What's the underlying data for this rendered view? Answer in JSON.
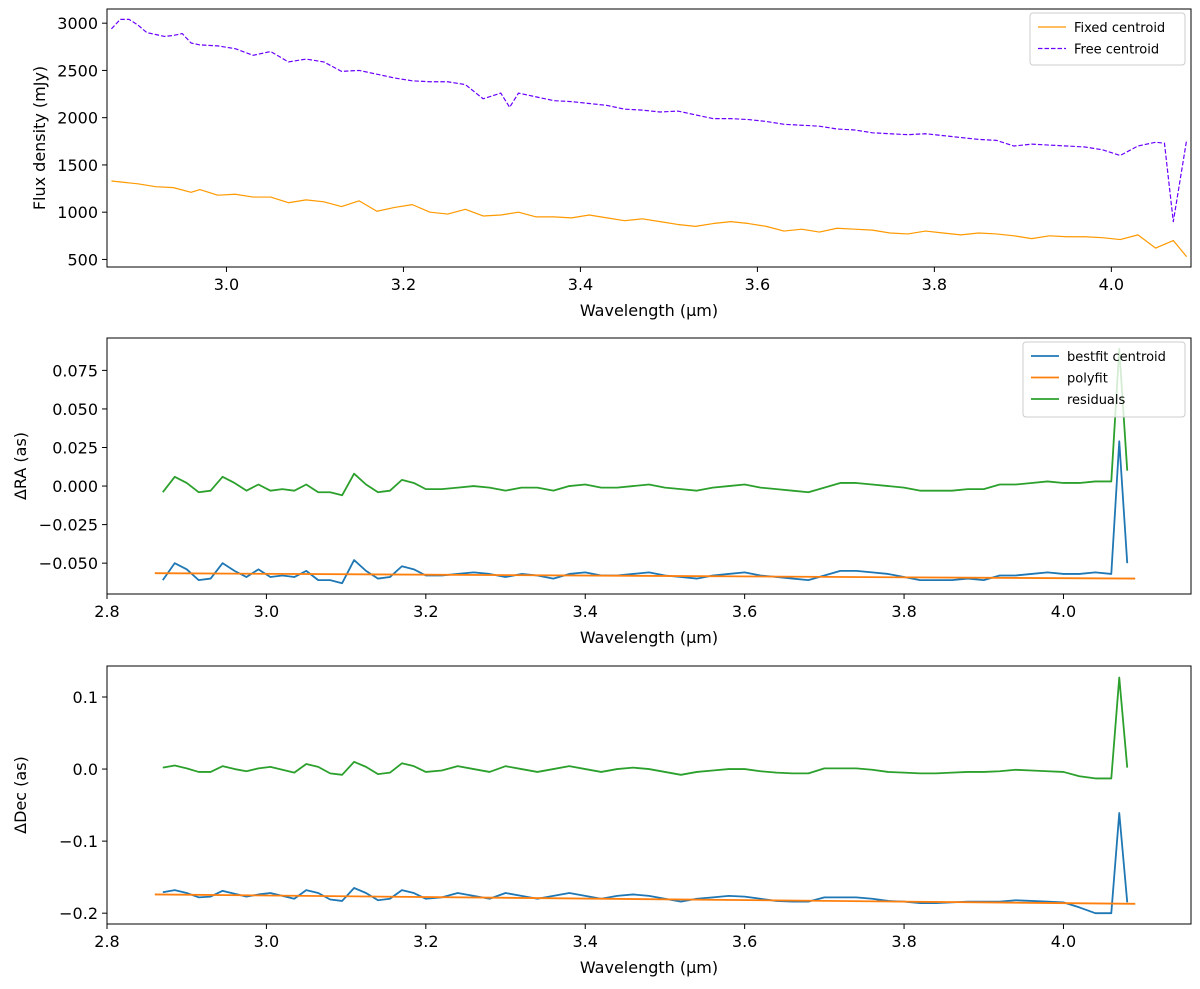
{
  "chart_data": [
    {
      "type": "line",
      "xlabel": "Wavelength (μm)",
      "ylabel": "Flux density (mJy)",
      "xlim": [
        2.865,
        4.09
      ],
      "ylim": [
        420,
        3150
      ],
      "xticks": [
        3.0,
        3.2,
        3.4,
        3.6,
        3.8,
        4.0
      ],
      "xtick_labels": [
        "3.0",
        "3.2",
        "3.4",
        "3.6",
        "3.8",
        "4.0"
      ],
      "yticks": [
        500,
        1000,
        1500,
        2000,
        2500,
        3000
      ],
      "ytick_labels": [
        "500",
        "1000",
        "1500",
        "2000",
        "2500",
        "3000"
      ],
      "grid": false,
      "legend": "top-right",
      "series": [
        {
          "name": "Fixed centroid",
          "color": "#ff9900",
          "dash": "solid",
          "x": [
            2.87,
            2.9,
            2.92,
            2.94,
            2.96,
            2.97,
            2.99,
            3.01,
            3.03,
            3.05,
            3.07,
            3.09,
            3.11,
            3.13,
            3.15,
            3.17,
            3.19,
            3.21,
            3.23,
            3.25,
            3.27,
            3.29,
            3.31,
            3.33,
            3.35,
            3.37,
            3.39,
            3.41,
            3.43,
            3.45,
            3.47,
            3.49,
            3.51,
            3.53,
            3.55,
            3.57,
            3.59,
            3.61,
            3.63,
            3.65,
            3.67,
            3.69,
            3.71,
            3.73,
            3.75,
            3.77,
            3.79,
            3.81,
            3.83,
            3.85,
            3.87,
            3.89,
            3.91,
            3.93,
            3.95,
            3.97,
            3.99,
            4.01,
            4.03,
            4.05,
            4.07,
            4.085
          ],
          "y": [
            1330,
            1300,
            1270,
            1260,
            1210,
            1240,
            1180,
            1190,
            1160,
            1160,
            1100,
            1130,
            1110,
            1060,
            1120,
            1010,
            1050,
            1080,
            1000,
            980,
            1030,
            960,
            970,
            1000,
            950,
            950,
            940,
            970,
            940,
            910,
            930,
            900,
            870,
            850,
            880,
            900,
            880,
            850,
            800,
            820,
            790,
            830,
            820,
            810,
            780,
            770,
            800,
            780,
            760,
            780,
            770,
            750,
            720,
            750,
            740,
            740,
            730,
            710,
            760,
            620,
            700,
            530
          ]
        },
        {
          "name": "Free centroid",
          "color": "#6a00ff",
          "dash": "dashed",
          "x": [
            2.87,
            2.88,
            2.89,
            2.9,
            2.91,
            2.92,
            2.93,
            2.94,
            2.95,
            2.96,
            2.97,
            2.99,
            3.01,
            3.03,
            3.05,
            3.07,
            3.09,
            3.11,
            3.13,
            3.15,
            3.17,
            3.19,
            3.21,
            3.23,
            3.25,
            3.27,
            3.29,
            3.31,
            3.32,
            3.33,
            3.35,
            3.37,
            3.39,
            3.41,
            3.43,
            3.45,
            3.47,
            3.49,
            3.51,
            3.53,
            3.55,
            3.57,
            3.59,
            3.61,
            3.63,
            3.65,
            3.67,
            3.69,
            3.71,
            3.73,
            3.75,
            3.77,
            3.79,
            3.81,
            3.83,
            3.85,
            3.87,
            3.89,
            3.91,
            3.93,
            3.95,
            3.97,
            3.99,
            4.01,
            4.03,
            4.05,
            4.06,
            4.07,
            4.085
          ],
          "y": [
            2940,
            3040,
            3040,
            2980,
            2900,
            2880,
            2860,
            2870,
            2890,
            2790,
            2770,
            2760,
            2730,
            2660,
            2700,
            2590,
            2620,
            2590,
            2490,
            2500,
            2460,
            2420,
            2390,
            2380,
            2380,
            2350,
            2200,
            2260,
            2110,
            2260,
            2220,
            2180,
            2170,
            2150,
            2130,
            2090,
            2080,
            2060,
            2070,
            2030,
            1990,
            1990,
            1980,
            1960,
            1930,
            1920,
            1910,
            1880,
            1870,
            1840,
            1830,
            1820,
            1830,
            1810,
            1790,
            1770,
            1760,
            1700,
            1720,
            1710,
            1700,
            1690,
            1660,
            1600,
            1700,
            1740,
            1730,
            900,
            1760
          ]
        }
      ]
    },
    {
      "type": "line",
      "xlabel": "Wavelength (μm)",
      "ylabel": "ΔRA (as)",
      "xlim": [
        2.8,
        4.16
      ],
      "ylim": [
        -0.07,
        0.096
      ],
      "xticks": [
        2.8,
        3.0,
        3.2,
        3.4,
        3.6,
        3.8,
        4.0
      ],
      "xtick_labels": [
        "2.8",
        "3.0",
        "3.2",
        "3.4",
        "3.6",
        "3.8",
        "4.0"
      ],
      "yticks": [
        -0.05,
        -0.025,
        0.0,
        0.025,
        0.05,
        0.075
      ],
      "ytick_labels": [
        "−0.050",
        "−0.025",
        "0.000",
        "0.025",
        "0.050",
        "0.075"
      ],
      "grid": false,
      "legend": "top-right",
      "series": [
        {
          "name": "bestfit centroid",
          "color": "#1f77b4",
          "dash": "solid",
          "x": [
            2.87,
            2.885,
            2.9,
            2.915,
            2.93,
            2.945,
            2.96,
            2.975,
            2.99,
            3.005,
            3.02,
            3.035,
            3.05,
            3.065,
            3.08,
            3.095,
            3.11,
            3.125,
            3.14,
            3.155,
            3.17,
            3.185,
            3.2,
            3.22,
            3.24,
            3.26,
            3.28,
            3.3,
            3.32,
            3.34,
            3.36,
            3.38,
            3.4,
            3.42,
            3.44,
            3.46,
            3.48,
            3.5,
            3.52,
            3.54,
            3.56,
            3.58,
            3.6,
            3.62,
            3.64,
            3.66,
            3.68,
            3.7,
            3.72,
            3.74,
            3.76,
            3.78,
            3.8,
            3.82,
            3.84,
            3.86,
            3.88,
            3.9,
            3.92,
            3.94,
            3.96,
            3.98,
            4.0,
            4.02,
            4.04,
            4.06,
            4.07,
            4.08
          ],
          "y": [
            -0.061,
            -0.05,
            -0.054,
            -0.061,
            -0.06,
            -0.05,
            -0.055,
            -0.059,
            -0.054,
            -0.059,
            -0.058,
            -0.059,
            -0.055,
            -0.061,
            -0.061,
            -0.063,
            -0.048,
            -0.055,
            -0.06,
            -0.059,
            -0.052,
            -0.054,
            -0.058,
            -0.058,
            -0.057,
            -0.056,
            -0.057,
            -0.059,
            -0.057,
            -0.058,
            -0.06,
            -0.057,
            -0.056,
            -0.058,
            -0.058,
            -0.057,
            -0.056,
            -0.058,
            -0.059,
            -0.06,
            -0.058,
            -0.057,
            -0.056,
            -0.058,
            -0.059,
            -0.06,
            -0.061,
            -0.058,
            -0.055,
            -0.055,
            -0.056,
            -0.057,
            -0.059,
            -0.061,
            -0.061,
            -0.061,
            -0.06,
            -0.061,
            -0.058,
            -0.058,
            -0.057,
            -0.056,
            -0.057,
            -0.057,
            -0.056,
            -0.057,
            0.029,
            -0.05
          ]
        },
        {
          "name": "polyfit",
          "color": "#ff7f0e",
          "dash": "solid",
          "x": [
            2.86,
            4.09
          ],
          "y": [
            -0.0565,
            -0.06
          ]
        },
        {
          "name": "residuals",
          "color": "#2ca02c",
          "dash": "solid",
          "x": [
            2.87,
            2.885,
            2.9,
            2.915,
            2.93,
            2.945,
            2.96,
            2.975,
            2.99,
            3.005,
            3.02,
            3.035,
            3.05,
            3.065,
            3.08,
            3.095,
            3.11,
            3.125,
            3.14,
            3.155,
            3.17,
            3.185,
            3.2,
            3.22,
            3.24,
            3.26,
            3.28,
            3.3,
            3.32,
            3.34,
            3.36,
            3.38,
            3.4,
            3.42,
            3.44,
            3.46,
            3.48,
            3.5,
            3.52,
            3.54,
            3.56,
            3.58,
            3.6,
            3.62,
            3.64,
            3.66,
            3.68,
            3.7,
            3.72,
            3.74,
            3.76,
            3.78,
            3.8,
            3.82,
            3.84,
            3.86,
            3.88,
            3.9,
            3.92,
            3.94,
            3.96,
            3.98,
            4.0,
            4.02,
            4.04,
            4.06,
            4.07,
            4.08
          ],
          "y": [
            -0.004,
            0.006,
            0.002,
            -0.004,
            -0.003,
            0.006,
            0.002,
            -0.003,
            0.001,
            -0.003,
            -0.002,
            -0.003,
            0.001,
            -0.004,
            -0.004,
            -0.006,
            0.008,
            0.001,
            -0.004,
            -0.003,
            0.004,
            0.002,
            -0.002,
            -0.002,
            -0.001,
            0.0,
            -0.001,
            -0.003,
            -0.001,
            -0.001,
            -0.003,
            0.0,
            0.001,
            -0.001,
            -0.001,
            0.0,
            0.001,
            -0.001,
            -0.002,
            -0.003,
            -0.001,
            0.0,
            0.001,
            -0.001,
            -0.002,
            -0.003,
            -0.004,
            -0.001,
            0.002,
            0.002,
            0.001,
            0.0,
            -0.001,
            -0.003,
            -0.003,
            -0.003,
            -0.002,
            -0.002,
            0.001,
            0.001,
            0.002,
            0.003,
            0.002,
            0.002,
            0.003,
            0.003,
            0.089,
            0.01
          ]
        }
      ]
    },
    {
      "type": "line",
      "xlabel": "Wavelength (μm)",
      "ylabel": "ΔDec (as)",
      "xlim": [
        2.8,
        4.16
      ],
      "ylim": [
        -0.215,
        0.143
      ],
      "xticks": [
        2.8,
        3.0,
        3.2,
        3.4,
        3.6,
        3.8,
        4.0
      ],
      "xtick_labels": [
        "2.8",
        "3.0",
        "3.2",
        "3.4",
        "3.6",
        "3.8",
        "4.0"
      ],
      "yticks": [
        -0.2,
        -0.1,
        0.0,
        0.1
      ],
      "ytick_labels": [
        "−0.2",
        "−0.1",
        "0.0",
        "0.1"
      ],
      "grid": false,
      "legend": "",
      "series": [
        {
          "name": "bestfit centroid",
          "color": "#1f77b4",
          "dash": "solid",
          "x": [
            2.87,
            2.885,
            2.9,
            2.915,
            2.93,
            2.945,
            2.96,
            2.975,
            2.99,
            3.005,
            3.02,
            3.035,
            3.05,
            3.065,
            3.08,
            3.095,
            3.11,
            3.125,
            3.14,
            3.155,
            3.17,
            3.185,
            3.2,
            3.22,
            3.24,
            3.26,
            3.28,
            3.3,
            3.32,
            3.34,
            3.36,
            3.38,
            3.4,
            3.42,
            3.44,
            3.46,
            3.48,
            3.5,
            3.52,
            3.54,
            3.56,
            3.58,
            3.6,
            3.62,
            3.64,
            3.66,
            3.68,
            3.7,
            3.72,
            3.74,
            3.76,
            3.78,
            3.8,
            3.82,
            3.84,
            3.86,
            3.88,
            3.9,
            3.92,
            3.94,
            3.96,
            3.98,
            4.0,
            4.02,
            4.04,
            4.06,
            4.07,
            4.08
          ],
          "y": [
            -0.171,
            -0.168,
            -0.172,
            -0.178,
            -0.177,
            -0.169,
            -0.173,
            -0.177,
            -0.174,
            -0.172,
            -0.176,
            -0.18,
            -0.168,
            -0.172,
            -0.181,
            -0.183,
            -0.165,
            -0.172,
            -0.182,
            -0.18,
            -0.168,
            -0.172,
            -0.18,
            -0.178,
            -0.172,
            -0.176,
            -0.18,
            -0.172,
            -0.176,
            -0.18,
            -0.176,
            -0.172,
            -0.176,
            -0.18,
            -0.176,
            -0.174,
            -0.176,
            -0.18,
            -0.184,
            -0.18,
            -0.178,
            -0.176,
            -0.177,
            -0.18,
            -0.183,
            -0.184,
            -0.184,
            -0.178,
            -0.178,
            -0.178,
            -0.18,
            -0.183,
            -0.184,
            -0.186,
            -0.186,
            -0.185,
            -0.184,
            -0.184,
            -0.184,
            -0.182,
            -0.183,
            -0.184,
            -0.185,
            -0.192,
            -0.2,
            -0.2,
            -0.061,
            -0.185
          ]
        },
        {
          "name": "polyfit",
          "color": "#ff7f0e",
          "dash": "solid",
          "x": [
            2.86,
            4.09
          ],
          "y": [
            -0.174,
            -0.187
          ]
        },
        {
          "name": "residuals",
          "color": "#2ca02c",
          "dash": "solid",
          "x": [
            2.87,
            2.885,
            2.9,
            2.915,
            2.93,
            2.945,
            2.96,
            2.975,
            2.99,
            3.005,
            3.02,
            3.035,
            3.05,
            3.065,
            3.08,
            3.095,
            3.11,
            3.125,
            3.14,
            3.155,
            3.17,
            3.185,
            3.2,
            3.22,
            3.24,
            3.26,
            3.28,
            3.3,
            3.32,
            3.34,
            3.36,
            3.38,
            3.4,
            3.42,
            3.44,
            3.46,
            3.48,
            3.5,
            3.52,
            3.54,
            3.56,
            3.58,
            3.6,
            3.62,
            3.64,
            3.66,
            3.68,
            3.7,
            3.72,
            3.74,
            3.76,
            3.78,
            3.8,
            3.82,
            3.84,
            3.86,
            3.88,
            3.9,
            3.92,
            3.94,
            3.96,
            3.98,
            4.0,
            4.02,
            4.04,
            4.06,
            4.07,
            4.08
          ],
          "y": [
            0.002,
            0.005,
            0.001,
            -0.004,
            -0.004,
            0.004,
            0.0,
            -0.003,
            0.001,
            0.003,
            -0.001,
            -0.005,
            0.007,
            0.003,
            -0.006,
            -0.008,
            0.01,
            0.003,
            -0.007,
            -0.005,
            0.008,
            0.004,
            -0.004,
            -0.002,
            0.004,
            0.0,
            -0.004,
            0.004,
            0.0,
            -0.004,
            0.0,
            0.004,
            0.0,
            -0.004,
            0.0,
            0.002,
            0.0,
            -0.004,
            -0.008,
            -0.004,
            -0.002,
            0.0,
            0.0,
            -0.003,
            -0.005,
            -0.006,
            -0.006,
            0.001,
            0.001,
            0.001,
            -0.001,
            -0.004,
            -0.005,
            -0.006,
            -0.006,
            -0.005,
            -0.004,
            -0.004,
            -0.003,
            -0.001,
            -0.002,
            -0.003,
            -0.004,
            -0.01,
            -0.013,
            -0.013,
            0.127,
            0.002
          ]
        }
      ]
    }
  ]
}
